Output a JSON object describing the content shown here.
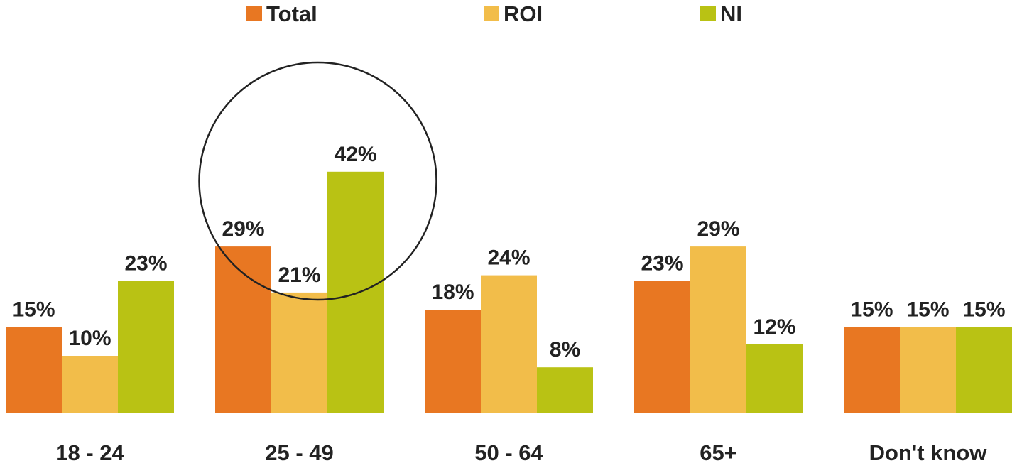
{
  "chart_data": {
    "type": "bar",
    "categories": [
      "18 - 24",
      "25  - 49",
      "50 - 64",
      "65+",
      "Don't know"
    ],
    "series": [
      {
        "name": "Total",
        "color": "#E87722",
        "values": [
          15,
          29,
          18,
          23,
          15
        ]
      },
      {
        "name": "ROI",
        "color": "#F2BD4A",
        "values": [
          10,
          21,
          24,
          29,
          15
        ]
      },
      {
        "name": "NI",
        "color": "#B9C214",
        "values": [
          23,
          42,
          8,
          12,
          15
        ]
      }
    ],
    "value_suffix": "%",
    "title": "",
    "xlabel": "",
    "ylabel": "",
    "ylim": [
      0,
      42
    ],
    "grid": false,
    "legend_position": "top",
    "annotation": {
      "type": "circle",
      "category": "25  - 49"
    }
  }
}
